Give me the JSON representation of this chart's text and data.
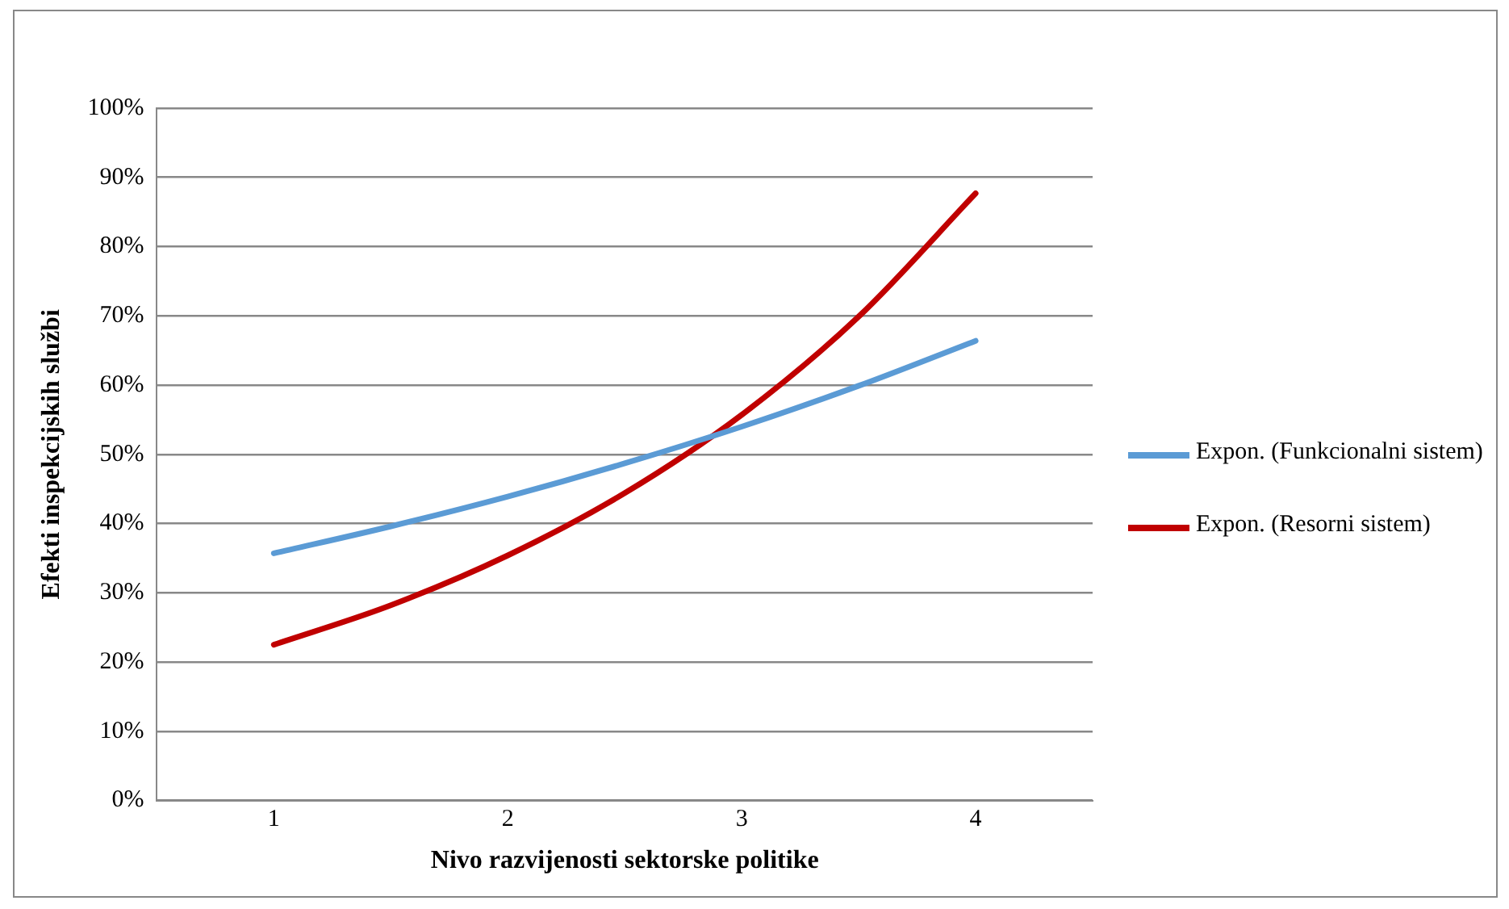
{
  "chart_data": {
    "type": "line",
    "xlabel": "Nivo razvijenosti sektorske politike",
    "ylabel": "Efekti inspekcijskih službi",
    "x": [
      1,
      1.5,
      2,
      2.5,
      3,
      3.5,
      4
    ],
    "series": [
      {
        "name": "Expon. (Funkcionalni sistem)",
        "color": "#5b9bd5",
        "values": [
          35.7,
          39.6,
          43.9,
          48.7,
          54.0,
          59.9,
          66.4
        ]
      },
      {
        "name": "Expon. (Resorni sistem)",
        "color": "#c00000",
        "values": [
          22.5,
          28.2,
          35.4,
          44.4,
          55.7,
          69.9,
          87.7
        ]
      }
    ],
    "xlim": [
      0.5,
      4.5
    ],
    "xticks": [
      1,
      2,
      3,
      4
    ],
    "ylim": [
      0,
      100
    ],
    "yticks": [
      {
        "value": 0,
        "label": "0%"
      },
      {
        "value": 10,
        "label": "10%"
      },
      {
        "value": 20,
        "label": "20%"
      },
      {
        "value": 30,
        "label": "30%"
      },
      {
        "value": 40,
        "label": "40%"
      },
      {
        "value": 50,
        "label": "50%"
      },
      {
        "value": 60,
        "label": "60%"
      },
      {
        "value": 70,
        "label": "70%"
      },
      {
        "value": 80,
        "label": "80%"
      },
      {
        "value": 90,
        "label": "90%"
      },
      {
        "value": 100,
        "label": "100%"
      }
    ],
    "grid": "y",
    "legend": "right",
    "marker": "none",
    "line_style": "solid"
  }
}
